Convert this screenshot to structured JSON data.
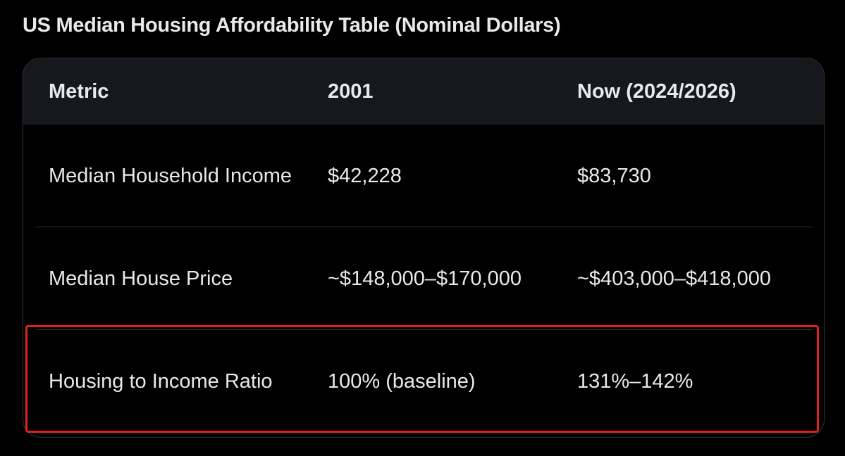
{
  "header": {
    "title": "US Median Housing Affordability Table (Nominal Dollars)"
  },
  "table": {
    "headers": [
      "Metric",
      "2001",
      "Now (2024/2026)"
    ],
    "rows": [
      [
        "Median Household Income",
        "$42,228",
        "$83,730"
      ],
      [
        "Median House Price",
        "~$148,000–$170,000",
        "~$403,000–$418,000"
      ],
      [
        "Housing to Income Ratio",
        "100% (baseline)",
        "131%–142%"
      ]
    ]
  }
}
